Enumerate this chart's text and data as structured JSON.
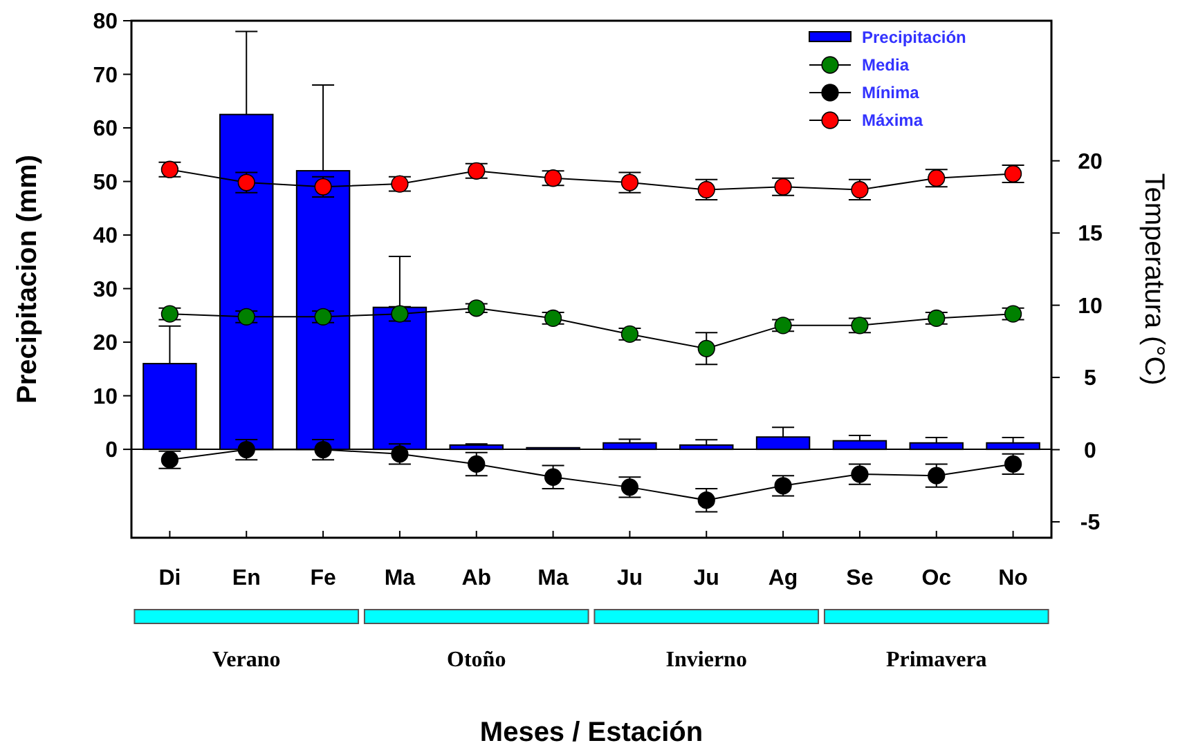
{
  "chart_data": {
    "type": "bar",
    "xlabel": "Meses / Estación",
    "ylabel": "Precipitacion (mm)",
    "y2label": "Temperatura (°C)",
    "categories": [
      "Di",
      "En",
      "Fe",
      "Ma",
      "Ab",
      "Ma",
      "Ju",
      "Ju",
      "Ag",
      "Se",
      "Oc",
      "No"
    ],
    "series": [
      {
        "name": "Precipitación",
        "color": "#0000ff",
        "values": [
          16,
          62.5,
          52,
          26.5,
          0.8,
          0.3,
          1.2,
          0.8,
          2.3,
          1.6,
          1.2,
          1.2
        ],
        "errors": [
          [
            16,
            23
          ],
          [
            62.5,
            78
          ],
          [
            52,
            68
          ],
          [
            26.5,
            36
          ],
          [
            0.8,
            1
          ],
          null,
          [
            1.2,
            1.9
          ],
          [
            0.8,
            1.8
          ],
          [
            2.3,
            4.1
          ],
          [
            1.6,
            2.6
          ],
          [
            1.2,
            2.2
          ],
          [
            1.2,
            2.2
          ]
        ]
      },
      {
        "name": "Media",
        "type": "line",
        "axis": "y2",
        "color": "#008000",
        "values": [
          9.4,
          9.2,
          9.2,
          9.4,
          9.8,
          9.1,
          8.0,
          7.0,
          8.6,
          8.6,
          9.1,
          9.4
        ],
        "errors": [
          0.4,
          0.4,
          0.4,
          0.5,
          0.3,
          0.4,
          0.4,
          1.1,
          0.4,
          0.5,
          0.4,
          0.4
        ]
      },
      {
        "name": "Mínima",
        "type": "line",
        "axis": "y2",
        "color": "#000000",
        "values": [
          -0.7,
          0,
          0,
          -0.3,
          -1.0,
          -1.9,
          -2.6,
          -3.5,
          -2.5,
          -1.7,
          -1.8,
          -1.0
        ],
        "errors": [
          0.6,
          0.7,
          0.7,
          0.7,
          0.8,
          0.8,
          0.7,
          0.8,
          0.7,
          0.7,
          0.8,
          0.7
        ]
      },
      {
        "name": "Máxima",
        "type": "line",
        "axis": "y2",
        "color": "#ff0000",
        "values": [
          19.4,
          18.5,
          18.2,
          18.4,
          19.3,
          18.8,
          18.5,
          18.0,
          18.2,
          18.0,
          18.8,
          19.1
        ],
        "errors": [
          0.5,
          0.7,
          0.7,
          0.5,
          0.5,
          0.5,
          0.7,
          0.7,
          0.6,
          0.7,
          0.6,
          0.6
        ]
      }
    ],
    "ylim": [
      -16.5,
      80
    ],
    "yticks": [
      0,
      10,
      20,
      30,
      40,
      50,
      60,
      70,
      80
    ],
    "y2lim": [
      -6.1,
      29.7
    ],
    "y2ticks": [
      -5,
      0,
      5,
      10,
      15,
      20
    ],
    "annotations": [
      "Verano",
      "Otoño",
      "Invierno",
      "Primavera"
    ],
    "ref_lines": [
      {
        "axis": "y",
        "value": 0
      }
    ],
    "legend": "top right",
    "marker": "circle",
    "line_style": "solid",
    "grid": false
  }
}
